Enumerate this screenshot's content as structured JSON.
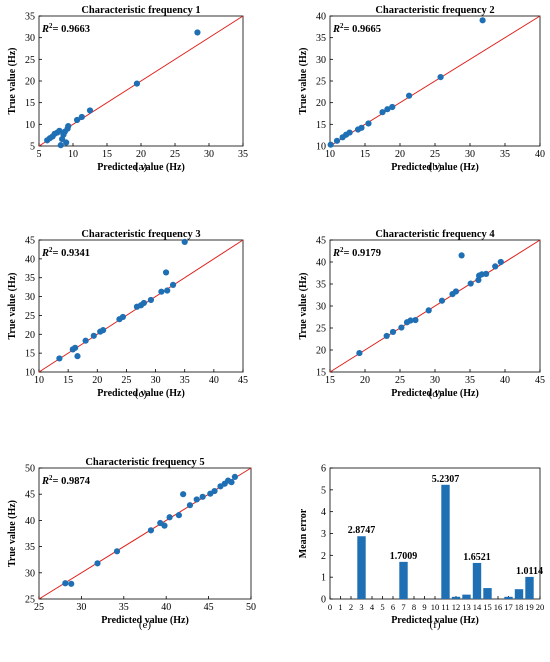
{
  "colors": {
    "point": "#1f6fb4",
    "bar": "#1f6fb4",
    "refline": "#e0201b",
    "axis": "#000000"
  },
  "chart_data": [
    {
      "type": "scatter",
      "panel_label": "(a)",
      "title": "Characteristic frequency 1",
      "xlabel": "Predicted value (Hz)",
      "ylabel": "True value (Hz)",
      "xlim": [
        5,
        35
      ],
      "ylim": [
        5,
        35
      ],
      "xticks": [
        "5",
        "10",
        "15",
        "20",
        "25",
        "30",
        "35"
      ],
      "yticks": [
        "5",
        "10",
        "15",
        "20",
        "25",
        "30",
        "35"
      ],
      "r2_prefix": "R",
      "r2_sup": "2",
      "r2_value": "= 0.9663",
      "reference_line": "y = x",
      "points": [
        [
          6.2,
          6.3
        ],
        [
          6.6,
          6.8
        ],
        [
          7.0,
          7.2
        ],
        [
          7.3,
          7.8
        ],
        [
          7.7,
          8.1
        ],
        [
          8.0,
          8.5
        ],
        [
          8.2,
          5.2
        ],
        [
          8.4,
          6.6
        ],
        [
          8.6,
          7.6
        ],
        [
          8.8,
          8.3
        ],
        [
          9.0,
          5.8
        ],
        [
          9.2,
          9.0
        ],
        [
          9.3,
          9.6
        ],
        [
          10.6,
          11.0
        ],
        [
          11.3,
          11.7
        ],
        [
          12.5,
          13.2
        ],
        [
          19.4,
          19.4
        ],
        [
          28.3,
          31.2
        ]
      ]
    },
    {
      "type": "scatter",
      "panel_label": "(b)",
      "title": "Characteristic frequency 2",
      "xlabel": "Predicted value (Hz)",
      "ylabel": "True value (Hz)",
      "xlim": [
        10,
        40
      ],
      "ylim": [
        10,
        40
      ],
      "xticks": [
        "10",
        "15",
        "20",
        "25",
        "30",
        "35",
        "40"
      ],
      "yticks": [
        "10",
        "15",
        "20",
        "25",
        "30",
        "35",
        "40"
      ],
      "r2_prefix": "R",
      "r2_sup": "2",
      "r2_value": "= 0.9665",
      "reference_line": "y = x",
      "points": [
        [
          10.1,
          10.3
        ],
        [
          11.0,
          11.2
        ],
        [
          11.8,
          12.0
        ],
        [
          12.3,
          12.6
        ],
        [
          12.8,
          13.1
        ],
        [
          14.0,
          13.8
        ],
        [
          14.5,
          14.2
        ],
        [
          15.5,
          15.2
        ],
        [
          17.5,
          17.8
        ],
        [
          18.2,
          18.5
        ],
        [
          18.9,
          19.0
        ],
        [
          21.3,
          21.6
        ],
        [
          25.8,
          25.9
        ],
        [
          31.8,
          39.0
        ]
      ]
    },
    {
      "type": "scatter",
      "panel_label": "(c)",
      "title": "Characteristic frequency 3",
      "xlabel": "Predicted value (Hz)",
      "ylabel": "True value (Hz)",
      "xlim": [
        10,
        45
      ],
      "ylim": [
        10,
        45
      ],
      "xticks": [
        "10",
        "15",
        "20",
        "25",
        "30",
        "35",
        "40",
        "45"
      ],
      "yticks": [
        "10",
        "15",
        "20",
        "25",
        "30",
        "35",
        "40",
        "45"
      ],
      "r2_prefix": "R",
      "r2_sup": "2",
      "r2_value": "= 0.9341",
      "reference_line": "y = x",
      "points": [
        [
          13.5,
          13.6
        ],
        [
          15.8,
          16.0
        ],
        [
          16.2,
          16.4
        ],
        [
          16.6,
          14.2
        ],
        [
          18.0,
          18.3
        ],
        [
          19.4,
          19.6
        ],
        [
          20.5,
          20.7
        ],
        [
          21.0,
          21.1
        ],
        [
          23.8,
          24.0
        ],
        [
          24.4,
          24.6
        ],
        [
          26.8,
          27.3
        ],
        [
          27.5,
          27.7
        ],
        [
          28.0,
          28.3
        ],
        [
          29.2,
          29.1
        ],
        [
          31.0,
          31.3
        ],
        [
          31.8,
          36.4
        ],
        [
          32.0,
          31.6
        ],
        [
          33.0,
          33.1
        ],
        [
          35.0,
          44.5
        ]
      ]
    },
    {
      "type": "scatter",
      "panel_label": "(d)",
      "title": "Characteristic frequency 4",
      "xlabel": "Predicted value (Hz)",
      "ylabel": "True value (Hz)",
      "xlim": [
        15,
        45
      ],
      "ylim": [
        15,
        45
      ],
      "xticks": [
        "15",
        "20",
        "25",
        "30",
        "35",
        "40",
        "45"
      ],
      "yticks": [
        "15",
        "20",
        "25",
        "30",
        "35",
        "40",
        "45"
      ],
      "r2_prefix": "R",
      "r2_sup": "2",
      "r2_value": "= 0.9179",
      "reference_line": "y = x",
      "points": [
        [
          19.2,
          19.3
        ],
        [
          23.1,
          23.2
        ],
        [
          24.0,
          24.1
        ],
        [
          25.2,
          25.1
        ],
        [
          26.0,
          26.3
        ],
        [
          26.5,
          26.7
        ],
        [
          27.2,
          26.8
        ],
        [
          29.1,
          29.0
        ],
        [
          31.0,
          31.2
        ],
        [
          32.5,
          32.7
        ],
        [
          33.0,
          33.3
        ],
        [
          33.8,
          41.5
        ],
        [
          35.1,
          35.1
        ],
        [
          36.2,
          35.9
        ],
        [
          36.3,
          36.9
        ],
        [
          36.7,
          37.2
        ],
        [
          37.3,
          37.3
        ],
        [
          38.6,
          39.0
        ],
        [
          39.4,
          40.0
        ]
      ]
    },
    {
      "type": "scatter",
      "panel_label": "(e)",
      "title": "Characteristic frequency 5",
      "xlabel": "Predicted value (Hz)",
      "ylabel": "True value (Hz)",
      "xlim": [
        25,
        50
      ],
      "ylim": [
        25,
        50
      ],
      "xticks": [
        "25",
        "30",
        "35",
        "40",
        "45",
        "50"
      ],
      "yticks": [
        "25",
        "30",
        "35",
        "40",
        "45",
        "50"
      ],
      "r2_prefix": "R",
      "r2_sup": "2",
      "r2_value": "= 0.9874",
      "reference_line": "y = x",
      "points": [
        [
          28.1,
          28.0
        ],
        [
          28.8,
          27.9
        ],
        [
          31.9,
          31.8
        ],
        [
          34.2,
          34.1
        ],
        [
          38.2,
          38.1
        ],
        [
          39.3,
          39.5
        ],
        [
          39.8,
          39.0
        ],
        [
          40.4,
          40.6
        ],
        [
          41.5,
          41.0
        ],
        [
          42.0,
          45.0
        ],
        [
          42.8,
          42.9
        ],
        [
          43.6,
          44.0
        ],
        [
          44.3,
          44.5
        ],
        [
          45.2,
          45.1
        ],
        [
          45.7,
          45.6
        ],
        [
          46.4,
          46.5
        ],
        [
          46.9,
          47.0
        ],
        [
          47.3,
          47.6
        ],
        [
          47.7,
          47.3
        ],
        [
          48.1,
          48.3
        ]
      ]
    },
    {
      "type": "bar",
      "panel_label": "(f)",
      "title": "",
      "xlabel": "Predicted value (Hz)",
      "ylabel": "Mean error",
      "xlim": [
        0,
        20
      ],
      "ylim": [
        0,
        6
      ],
      "xticks": [
        "0",
        "1",
        "2",
        "3",
        "4",
        "5",
        "6",
        "7",
        "8",
        "9",
        "10",
        "11",
        "12",
        "13",
        "14",
        "15",
        "16",
        "17",
        "18",
        "19",
        "20"
      ],
      "yticks": [
        "0",
        "1",
        "2",
        "3",
        "4",
        "5",
        "6"
      ],
      "categories": [
        1,
        2,
        3,
        4,
        5,
        6,
        7,
        8,
        9,
        10,
        11,
        12,
        13,
        14,
        15,
        16,
        17,
        18,
        19
      ],
      "values": [
        0,
        0,
        2.8747,
        0,
        0,
        0,
        1.7009,
        0,
        0,
        0,
        5.2307,
        0.1,
        0.2,
        1.6521,
        0.5,
        0,
        0.1,
        0.45,
        1.0114
      ],
      "data_labels": [
        {
          "category": 3,
          "text": "2.8747"
        },
        {
          "category": 7,
          "text": "1.7009"
        },
        {
          "category": 11,
          "text": "5.2307"
        },
        {
          "category": 14,
          "text": "1.6521"
        },
        {
          "category": 19,
          "text": "1.0114"
        }
      ]
    }
  ]
}
